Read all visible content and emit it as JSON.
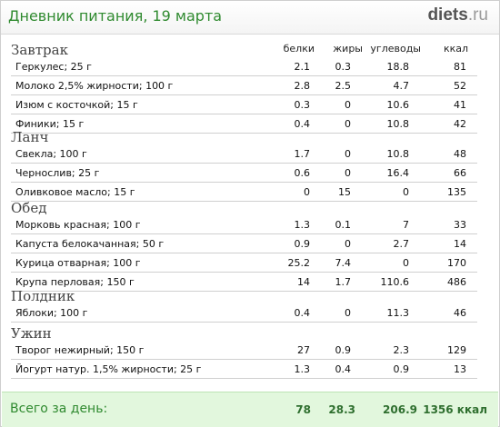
{
  "header": {
    "title": "Дневник питания, 19 марта",
    "logo_main": "diets",
    "logo_suffix": ".ru"
  },
  "columns": {
    "protein": "белки",
    "fat": "жиры",
    "carbs": "углеводы",
    "kcal": "ккал"
  },
  "meals": [
    {
      "title": "Завтрак",
      "items": [
        {
          "name": "Геркулес; 25 г",
          "protein": "2.1",
          "fat": "0.3",
          "carbs": "18.8",
          "kcal": "81"
        },
        {
          "name": "Молоко 2,5% жирности; 100 г",
          "protein": "2.8",
          "fat": "2.5",
          "carbs": "4.7",
          "kcal": "52"
        },
        {
          "name": "Изюм с косточкой; 15 г",
          "protein": "0.3",
          "fat": "0",
          "carbs": "10.6",
          "kcal": "41"
        },
        {
          "name": "Финики; 15 г",
          "protein": "0.4",
          "fat": "0",
          "carbs": "10.8",
          "kcal": "42"
        }
      ]
    },
    {
      "title": "Ланч",
      "items": [
        {
          "name": "Свекла; 100 г",
          "protein": "1.7",
          "fat": "0",
          "carbs": "10.8",
          "kcal": "48"
        },
        {
          "name": "Чернослив; 25 г",
          "protein": "0.6",
          "fat": "0",
          "carbs": "16.4",
          "kcal": "66"
        },
        {
          "name": "Оливковое масло; 15 г",
          "protein": "0",
          "fat": "15",
          "carbs": "0",
          "kcal": "135"
        }
      ]
    },
    {
      "title": "Обед",
      "items": [
        {
          "name": "Морковь красная; 100 г",
          "protein": "1.3",
          "fat": "0.1",
          "carbs": "7",
          "kcal": "33"
        },
        {
          "name": "Капуста белокачанная; 50 г",
          "protein": "0.9",
          "fat": "0",
          "carbs": "2.7",
          "kcal": "14"
        },
        {
          "name": "Курица отварная; 100 г",
          "protein": "25.2",
          "fat": "7.4",
          "carbs": "0",
          "kcal": "170"
        },
        {
          "name": "Крупа перловая; 150 г",
          "protein": "14",
          "fat": "1.7",
          "carbs": "110.6",
          "kcal": "486"
        }
      ]
    },
    {
      "title": "Полдник",
      "items": [
        {
          "name": "Яблоки; 100 г",
          "protein": "0.4",
          "fat": "0",
          "carbs": "11.3",
          "kcal": "46"
        }
      ]
    },
    {
      "title": "Ужин",
      "items": [
        {
          "name": "Творог нежирный; 150 г",
          "protein": "27",
          "fat": "0.9",
          "carbs": "2.3",
          "kcal": "129"
        },
        {
          "name": "Йогурт натур. 1,5% жирности; 25 г",
          "protein": "1.3",
          "fat": "0.4",
          "carbs": "0.9",
          "kcal": "13"
        }
      ]
    }
  ],
  "footer": {
    "label": "Всего за день:",
    "protein": "78",
    "fat": "28.3",
    "carbs": "206.9",
    "kcal": "1356 ккал"
  }
}
